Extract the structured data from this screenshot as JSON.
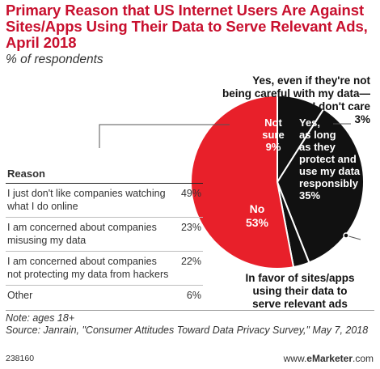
{
  "title": "Primary Reason that US Internet Users Are Against Sites/Apps Using Their Data to Serve Relevant Ads, April 2018",
  "subtitle": "% of respondents",
  "colors": {
    "red": "#e8202a",
    "black": "#111111",
    "title_red": "#c8102e"
  },
  "chart_data": {
    "type": "pie",
    "slices": [
      {
        "label": "No",
        "value": 53,
        "color": "#e8202a"
      },
      {
        "label": "Not sure",
        "value": 9,
        "color": "#111111"
      },
      {
        "label": "Yes, as long as they protect and use my data responsibly",
        "value": 35,
        "color": "#111111"
      },
      {
        "label": "Yes, even if they're not being careful with my data—I don't care",
        "value": 3,
        "color": "#111111"
      }
    ],
    "pie_labels": {
      "no": [
        "No",
        "53%"
      ],
      "not_sure": [
        "Not",
        "sure",
        "9%"
      ],
      "yes_careful": [
        "Yes,",
        "as long",
        "as they",
        "protect and",
        "use my data",
        "responsibly",
        "35%"
      ],
      "yes_dont_care": [
        "Yes, even if they're not",
        "being careful with my data—",
        "I don't care",
        "3%"
      ],
      "in_favor": [
        "In favor of sites/apps",
        "using their data to",
        "serve relevant ads"
      ]
    },
    "breakdown_table": {
      "header": "Reason",
      "rows": [
        {
          "label": "I just don't like companies watching what I do online",
          "value": "49%"
        },
        {
          "label": "I am concerned about companies misusing my data",
          "value": "23%"
        },
        {
          "label": "I am concerned about companies not protecting my data from hackers",
          "value": "22%"
        },
        {
          "label": "Other",
          "value": "6%"
        }
      ]
    }
  },
  "note": "Note: ages 18+",
  "source": "Source: Janrain, \"Consumer Attitudes Toward Data Privacy Survey,\" May 7, 2018",
  "chart_code": "238160",
  "brand": {
    "prefix": "www.",
    "name": "eMarketer",
    "suffix": ".com"
  }
}
